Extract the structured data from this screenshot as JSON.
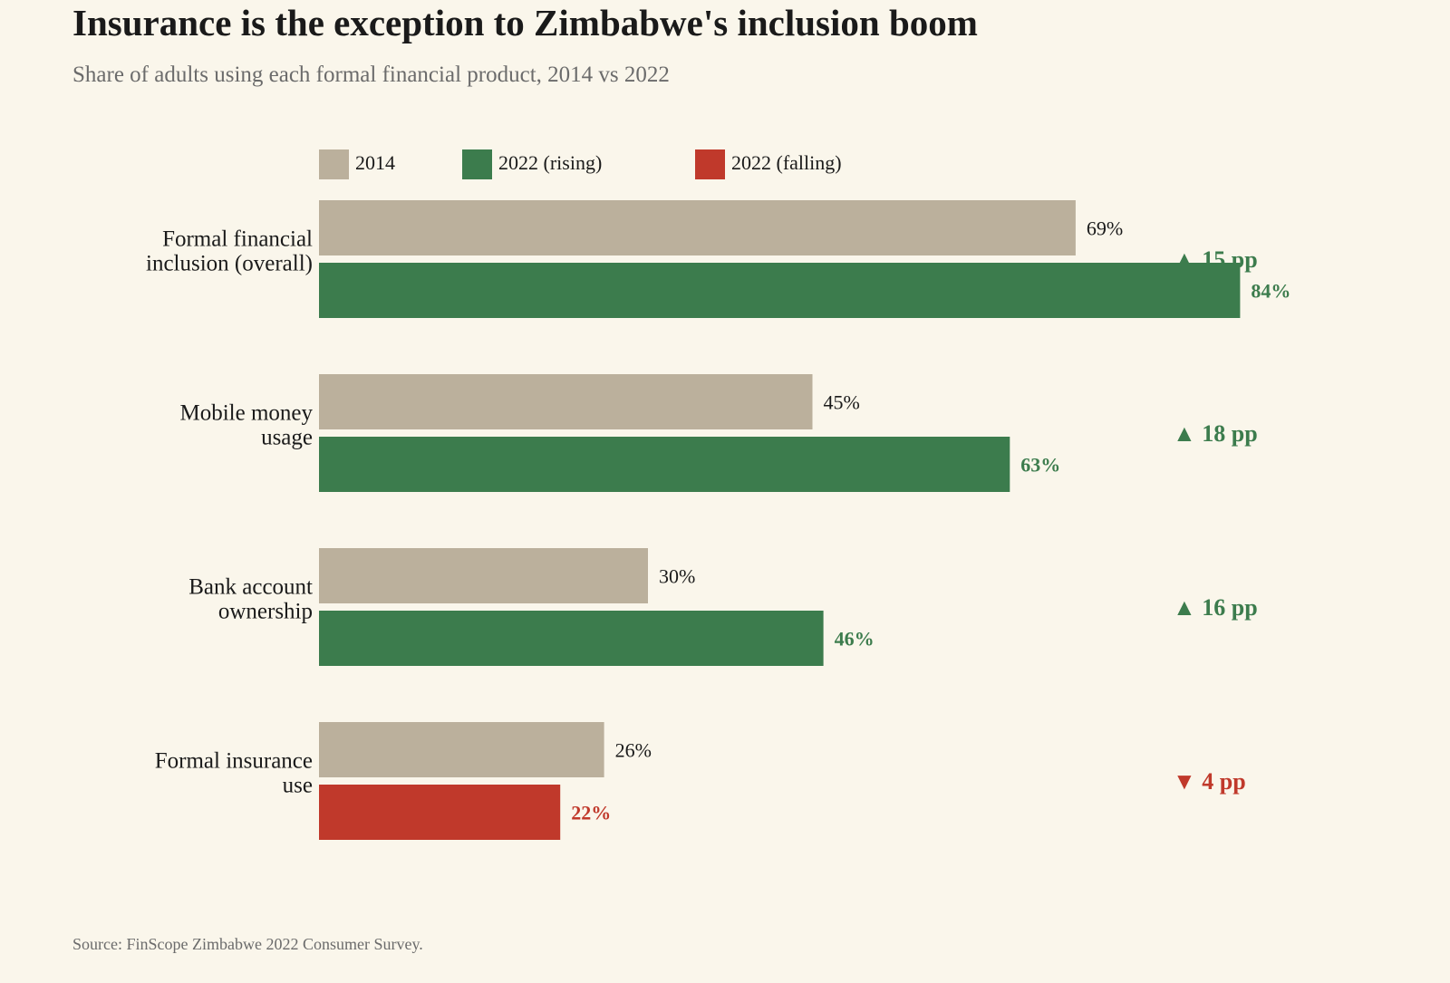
{
  "title": "Insurance is the exception to Zimbabwe's inclusion boom",
  "subtitle": "Share of adults using each formal financial product, 2014 vs 2022",
  "source": "Source: FinScope Zimbabwe 2022 Consumer Survey.",
  "colors": {
    "y2014": "#BBB09C",
    "rising": "#3C7C4D",
    "falling": "#C0392B",
    "background": "#FAF6EB"
  },
  "chart_data": {
    "type": "bar",
    "orientation": "horizontal",
    "categories": [
      [
        "Formal financial",
        "inclusion (overall)"
      ],
      [
        "Mobile money",
        "usage"
      ],
      [
        "Bank account",
        "ownership"
      ],
      [
        "Formal insurance",
        "use"
      ]
    ],
    "series": [
      {
        "name": "2014",
        "values": [
          69,
          45,
          30,
          26
        ],
        "labels": [
          "69%",
          "45%",
          "30%",
          "26%"
        ]
      },
      {
        "name": "2022",
        "values": [
          84,
          63,
          46,
          22
        ],
        "labels": [
          "84%",
          "63%",
          "46%",
          "22%"
        ]
      }
    ],
    "legend": [
      {
        "label": "2014",
        "color_key": "y2014"
      },
      {
        "label": "2022 (rising)",
        "color_key": "rising"
      },
      {
        "label": "2022 (falling)",
        "color_key": "falling"
      }
    ],
    "legend_position": "top",
    "changes": [
      {
        "label": "▲ 15 pp",
        "direction": "up"
      },
      {
        "label": "▲ 18 pp",
        "direction": "up"
      },
      {
        "label": "▲ 16 pp",
        "direction": "up"
      },
      {
        "label": "▼ 4 pp",
        "direction": "down"
      }
    ],
    "xlim": [
      0,
      100
    ],
    "grid": false,
    "unit": "%"
  }
}
